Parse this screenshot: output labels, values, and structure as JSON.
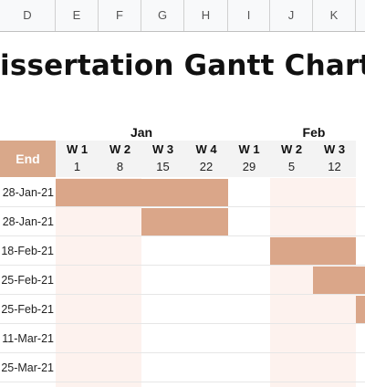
{
  "column_headers": [
    "D",
    "E",
    "F",
    "G",
    "H",
    "I",
    "J",
    "K"
  ],
  "title": "issertation Gantt Chart",
  "months": [
    {
      "label": "Jan"
    },
    {
      "label": "Feb"
    }
  ],
  "end_header": "End",
  "weeks": [
    {
      "label": "W 1",
      "day": "1"
    },
    {
      "label": "W 2",
      "day": "8"
    },
    {
      "label": "W 3",
      "day": "15"
    },
    {
      "label": "W 4",
      "day": "22"
    },
    {
      "label": "W 1",
      "day": "29"
    },
    {
      "label": "W 2",
      "day": "5"
    },
    {
      "label": "W 3",
      "day": "12"
    }
  ],
  "tasks": [
    {
      "end": "28-Jan-21",
      "start_week": 0,
      "duration_weeks": 4
    },
    {
      "end": "28-Jan-21",
      "start_week": 2,
      "duration_weeks": 2
    },
    {
      "end": "18-Feb-21",
      "start_week": 5,
      "duration_weeks": 2
    },
    {
      "end": "25-Feb-21",
      "start_week": 6,
      "duration_weeks": 2
    },
    {
      "end": "25-Feb-21",
      "start_week": 7,
      "duration_weeks": 1
    },
    {
      "end": "11-Mar-21",
      "start_week": 8,
      "duration_weeks": 0
    },
    {
      "end": "25-Mar-21",
      "start_week": 8,
      "duration_weeks": 0
    }
  ],
  "colors": {
    "bar": "#daa689",
    "header": "#d9a88a",
    "shade": "#fdf2ee"
  }
}
